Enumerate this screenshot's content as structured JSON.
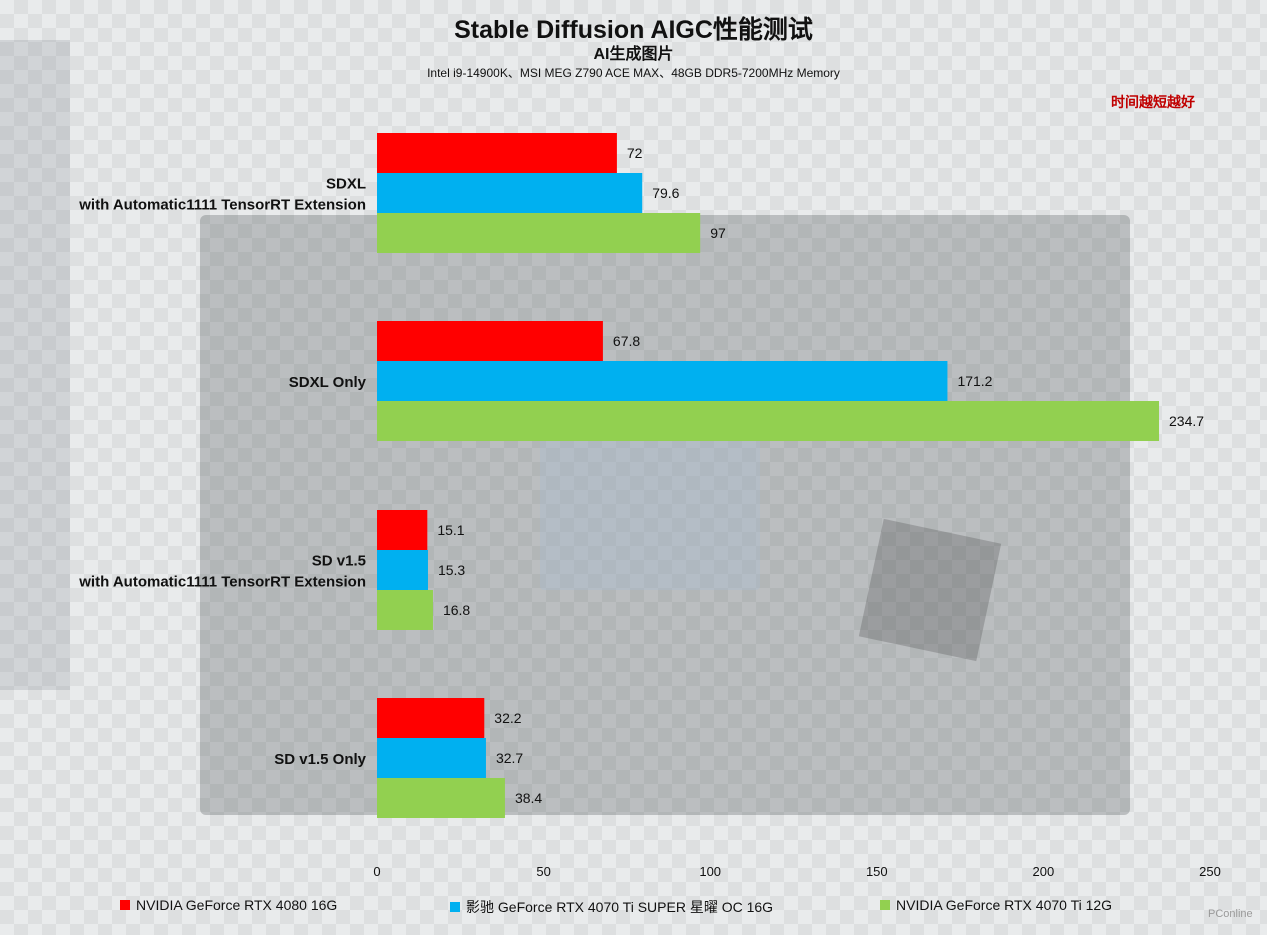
{
  "title": "Stable Diffusion AIGC性能测试",
  "subtitle": "AI生成图片",
  "subtitle2": "Intel i9-14900K、MSI MEG Z790 ACE MAX、48GB DDR5-7200MHz Memory",
  "annotation": "时间越短越好",
  "watermark": "PConline",
  "colors": {
    "series1": "#ff0000",
    "series2": "#00b0f0",
    "series3": "#92d050"
  },
  "chart_data": {
    "type": "bar",
    "orientation": "horizontal",
    "categories": [
      [
        "SDXL",
        "with Automatic1111 TensorRT Extension"
      ],
      [
        "SDXL Only"
      ],
      [
        "SD v1.5",
        "with Automatic1111 TensorRT Extension"
      ],
      [
        "SD v1.5 Only"
      ]
    ],
    "series": [
      {
        "name": "NVIDIA GeForce RTX 4080 16G",
        "color": "#ff0000",
        "values": [
          72,
          67.8,
          15.1,
          32.2
        ],
        "labels": [
          "72",
          "67.8",
          "15.1",
          "32.2"
        ]
      },
      {
        "name": "影驰 GeForce RTX 4070 Ti SUPER 星曜 OC 16G",
        "color": "#00b0f0",
        "values": [
          79.6,
          171.2,
          15.3,
          32.7
        ],
        "labels": [
          "79.6",
          "171.2",
          "15.3",
          "32.7"
        ]
      },
      {
        "name": "NVIDIA GeForce RTX 4070 Ti 12G",
        "color": "#92d050",
        "values": [
          97,
          234.7,
          16.8,
          38.4
        ],
        "labels": [
          "97",
          "234.7",
          "16.8",
          "38.4"
        ]
      }
    ],
    "xlim": [
      0,
      250
    ],
    "xticks": [
      0,
      50,
      100,
      150,
      200,
      250
    ],
    "xticklabels": [
      "0",
      "50",
      "100",
      "150",
      "200",
      "250"
    ],
    "grid": false,
    "legend": "bottom"
  }
}
